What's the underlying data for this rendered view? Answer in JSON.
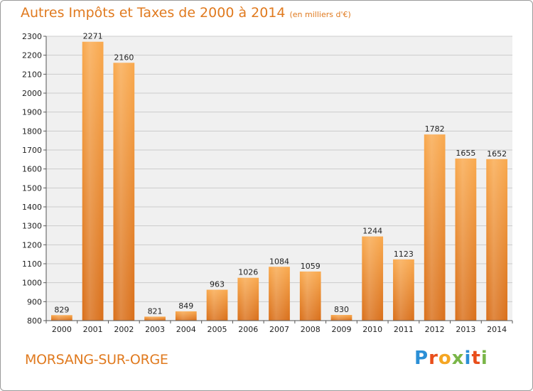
{
  "page": {
    "title": "Autres Impôts et Taxes de 2000 à 2014",
    "subtitle": "(en milliers d'€)",
    "town": "MORSANG-SUR-ORGE",
    "logo": {
      "letters": [
        "P",
        "r",
        "o",
        "x",
        "i",
        "t",
        "i"
      ],
      "colors": [
        "#2b8fd6",
        "#e94e1b",
        "#f5a623",
        "#7ab648",
        "#2b8fd6",
        "#e94e1b",
        "#7ab648"
      ]
    }
  },
  "colors": {
    "bar_light": "#f9a94e",
    "bar_dark": "#d96f1a",
    "title": "#e07a1f",
    "grid": "#cccccc",
    "plot_bg": "#f0f0f0"
  },
  "chart_data": {
    "type": "bar",
    "title": "Autres Impôts et Taxes de 2000 à 2014",
    "subtitle": "(en milliers d'€)",
    "categories": [
      "2000",
      "2001",
      "2002",
      "2003",
      "2004",
      "2005",
      "2006",
      "2007",
      "2008",
      "2009",
      "2010",
      "2011",
      "2012",
      "2013",
      "2014"
    ],
    "values": [
      829,
      2271,
      2160,
      821,
      849,
      963,
      1026,
      1084,
      1059,
      830,
      1244,
      1123,
      1782,
      1655,
      1652
    ],
    "value_labels": [
      "829",
      "2271",
      "2160",
      "821",
      "849",
      "963",
      "1026",
      "1084",
      "1059",
      "830",
      "1244",
      "1123",
      "1782",
      "1655",
      "1652"
    ],
    "ylim": [
      800,
      2300
    ],
    "yticks": [
      800,
      900,
      1000,
      1100,
      1200,
      1300,
      1400,
      1500,
      1600,
      1700,
      1800,
      1900,
      2000,
      2100,
      2200,
      2300
    ],
    "ytick_labels": [
      "800",
      "900",
      "1000",
      "1100",
      "1200",
      "1300",
      "1400",
      "1500",
      "1600",
      "1700",
      "1800",
      "1900",
      "2000",
      "2100",
      "2200",
      "2300"
    ],
    "grid": true,
    "legend": "none",
    "xlabel": "",
    "ylabel": ""
  }
}
